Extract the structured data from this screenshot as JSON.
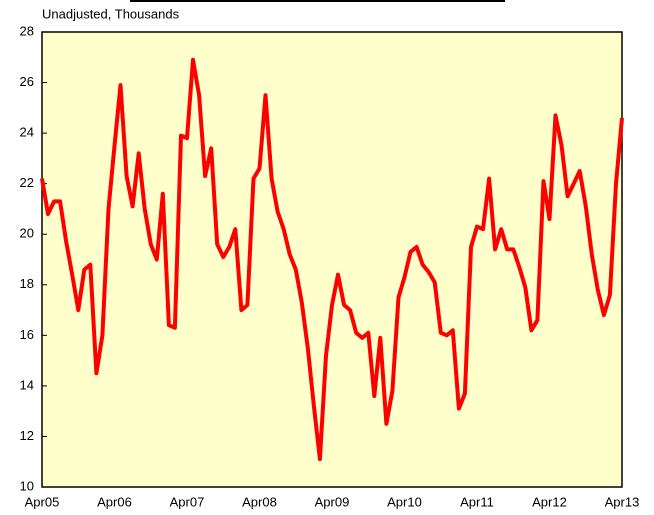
{
  "chart_data": {
    "type": "line",
    "subtitle": "Unadjusted, Thousands",
    "categories": [
      "Apr05",
      null,
      null,
      null,
      null,
      null,
      null,
      null,
      null,
      null,
      null,
      null,
      "Apr06",
      null,
      null,
      null,
      null,
      null,
      null,
      null,
      null,
      null,
      null,
      null,
      "Apr07",
      null,
      null,
      null,
      null,
      null,
      null,
      null,
      null,
      null,
      null,
      null,
      "Apr08",
      null,
      null,
      null,
      null,
      null,
      null,
      null,
      null,
      null,
      null,
      null,
      "Apr09",
      null,
      null,
      null,
      null,
      null,
      null,
      null,
      null,
      null,
      null,
      null,
      "Apr10",
      null,
      null,
      null,
      null,
      null,
      null,
      null,
      null,
      null,
      null,
      null,
      "Apr11",
      null,
      null,
      null,
      null,
      null,
      null,
      null,
      null,
      null,
      null,
      null,
      "Apr12",
      null,
      null,
      null,
      null,
      null,
      null,
      null,
      null,
      null,
      null,
      null,
      "Apr13"
    ],
    "series": [
      {
        "color": "#ff0000",
        "values": [
          22.2,
          20.8,
          21.3,
          21.3,
          19.7,
          18.4,
          17.0,
          18.6,
          18.8,
          14.5,
          16.0,
          21.0,
          23.5,
          25.9,
          22.3,
          21.1,
          23.2,
          21.0,
          19.6,
          19.0,
          21.6,
          16.4,
          16.3,
          23.9,
          23.8,
          26.9,
          25.5,
          22.3,
          23.4,
          19.6,
          19.1,
          19.5,
          20.2,
          17.0,
          17.2,
          22.2,
          22.6,
          25.5,
          22.2,
          20.9,
          20.2,
          19.2,
          18.6,
          17.3,
          15.5,
          13.2,
          11.1,
          15.2,
          17.2,
          18.4,
          17.2,
          17.0,
          16.1,
          15.9,
          16.1,
          13.6,
          15.9,
          12.5,
          13.8,
          17.5,
          18.3,
          19.3,
          19.5,
          18.8,
          18.5,
          18.1,
          16.1,
          16.0,
          16.2,
          13.1,
          13.7,
          19.5,
          20.3,
          20.2,
          22.2,
          19.4,
          20.2,
          19.4,
          19.4,
          18.7,
          17.9,
          16.2,
          16.6,
          22.1,
          20.6,
          24.7,
          23.5,
          21.5,
          22.0,
          22.5,
          21.1,
          19.2,
          17.8,
          16.8,
          17.6,
          22.0,
          24.6
        ]
      }
    ],
    "ylim": [
      10,
      28
    ],
    "yticks": [
      10,
      12,
      14,
      16,
      18,
      20,
      22,
      24,
      26,
      28
    ],
    "background": "#ffffcc",
    "grid": false
  }
}
